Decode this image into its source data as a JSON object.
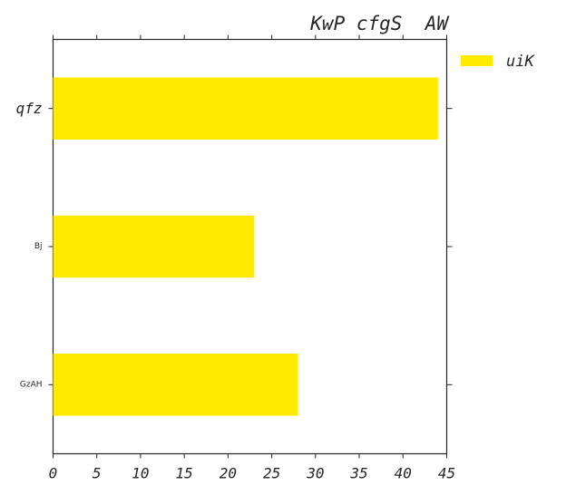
{
  "chart_data": {
    "type": "bar",
    "orientation": "horizontal",
    "title": "KwP cfgS  AW",
    "xlabel": "",
    "ylabel": "",
    "xlim": [
      0,
      45
    ],
    "x_ticks": [
      0,
      5,
      10,
      15,
      20,
      25,
      30,
      35,
      40,
      45
    ],
    "categories": [
      "qfz",
      "Bj",
      "GzAH"
    ],
    "series": [
      {
        "name": "uiK",
        "values": [
          44,
          23,
          28
        ],
        "color": "#ffea00"
      }
    ],
    "grid": false,
    "legend_position": "right, outside top"
  }
}
